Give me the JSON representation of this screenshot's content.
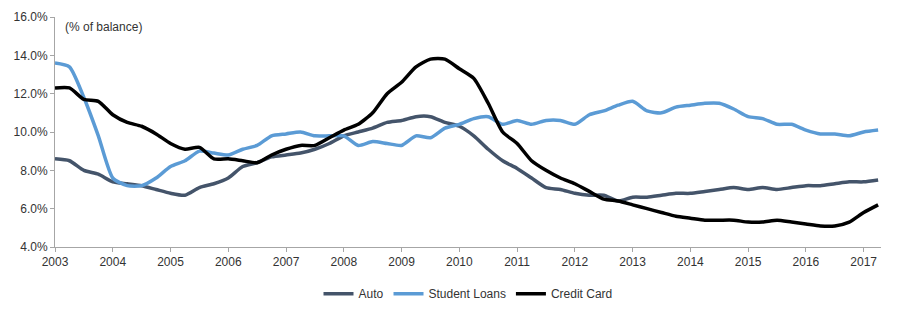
{
  "chart_data": {
    "type": "line",
    "annotation": "(% of balance)",
    "x": [
      2003,
      2003.25,
      2003.5,
      2003.75,
      2004,
      2004.25,
      2004.5,
      2004.75,
      2005,
      2005.25,
      2005.5,
      2005.75,
      2006,
      2006.25,
      2006.5,
      2006.75,
      2007,
      2007.25,
      2007.5,
      2007.75,
      2008,
      2008.25,
      2008.5,
      2008.75,
      2009,
      2009.25,
      2009.5,
      2009.75,
      2010,
      2010.25,
      2010.5,
      2010.75,
      2011,
      2011.25,
      2011.5,
      2011.75,
      2012,
      2012.25,
      2012.5,
      2012.75,
      2013,
      2013.25,
      2013.5,
      2013.75,
      2014,
      2014.25,
      2014.5,
      2014.75,
      2015,
      2015.25,
      2015.5,
      2015.75,
      2016,
      2016.25,
      2016.5,
      2016.75,
      2017,
      2017.25
    ],
    "series": [
      {
        "name": "Auto",
        "color": "#44546a",
        "values": [
          8.6,
          8.5,
          8.0,
          7.8,
          7.4,
          7.3,
          7.2,
          7.0,
          6.8,
          6.7,
          7.1,
          7.3,
          7.6,
          8.2,
          8.4,
          8.7,
          8.8,
          8.9,
          9.1,
          9.4,
          9.8,
          10.0,
          10.2,
          10.5,
          10.6,
          10.8,
          10.8,
          10.5,
          10.3,
          9.8,
          9.1,
          8.5,
          8.1,
          7.6,
          7.1,
          7.0,
          6.8,
          6.7,
          6.7,
          6.4,
          6.6,
          6.6,
          6.7,
          6.8,
          6.8,
          6.9,
          7.0,
          7.1,
          7.0,
          7.1,
          7.0,
          7.1,
          7.2,
          7.2,
          7.3,
          7.4,
          7.4,
          7.5
        ]
      },
      {
        "name": "Student Loans",
        "color": "#5b9bd5",
        "values": [
          13.6,
          13.4,
          11.8,
          9.8,
          7.6,
          7.2,
          7.2,
          7.6,
          8.2,
          8.5,
          9.0,
          8.9,
          8.8,
          9.1,
          9.3,
          9.8,
          9.9,
          10.0,
          9.8,
          9.8,
          9.8,
          9.3,
          9.5,
          9.4,
          9.3,
          9.8,
          9.7,
          10.2,
          10.4,
          10.7,
          10.8,
          10.4,
          10.6,
          10.4,
          10.6,
          10.6,
          10.4,
          10.9,
          11.1,
          11.4,
          11.6,
          11.1,
          11.0,
          11.3,
          11.4,
          11.5,
          11.5,
          11.2,
          10.8,
          10.7,
          10.4,
          10.4,
          10.1,
          9.9,
          9.9,
          9.8,
          10.0,
          10.1
        ]
      },
      {
        "name": "Credit Card",
        "color": "#000000",
        "values": [
          12.3,
          12.3,
          11.7,
          11.6,
          10.9,
          10.5,
          10.3,
          9.9,
          9.4,
          9.1,
          9.2,
          8.6,
          8.6,
          8.5,
          8.4,
          8.8,
          9.1,
          9.3,
          9.3,
          9.7,
          10.1,
          10.4,
          11.0,
          12.0,
          12.6,
          13.4,
          13.8,
          13.8,
          13.3,
          12.8,
          11.5,
          10.0,
          9.4,
          8.5,
          8.0,
          7.6,
          7.3,
          6.9,
          6.5,
          6.4,
          6.2,
          6.0,
          5.8,
          5.6,
          5.5,
          5.4,
          5.4,
          5.4,
          5.3,
          5.3,
          5.4,
          5.3,
          5.2,
          5.1,
          5.1,
          5.3,
          5.8,
          6.2
        ]
      }
    ],
    "xlim": [
      2003,
      2017.3
    ],
    "xticks": [
      2003,
      2004,
      2005,
      2006,
      2007,
      2008,
      2009,
      2010,
      2011,
      2012,
      2013,
      2014,
      2015,
      2016,
      2017
    ],
    "ylim": [
      4,
      16
    ],
    "yticks": [
      {
        "value": 4,
        "label": "4.0%"
      },
      {
        "value": 6,
        "label": "6.0%"
      },
      {
        "value": 8,
        "label": "8.0%"
      },
      {
        "value": 10,
        "label": "10.0%"
      },
      {
        "value": 12,
        "label": "12.0%"
      },
      {
        "value": 14,
        "label": "14.0%"
      },
      {
        "value": 16,
        "label": "16.0%"
      }
    ],
    "grid": false,
    "legend": "bottom"
  }
}
